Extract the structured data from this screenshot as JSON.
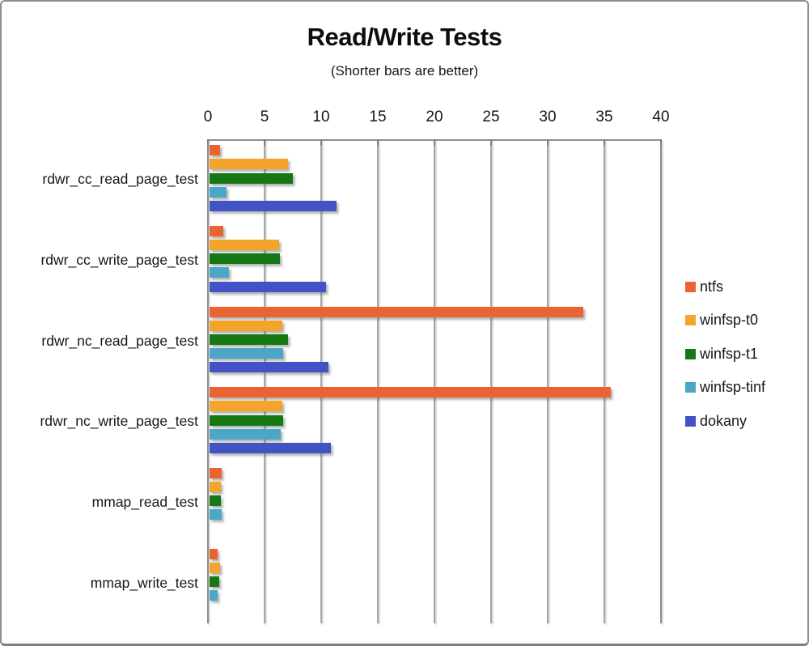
{
  "chart_data": {
    "type": "bar",
    "orientation": "horizontal",
    "title": "Read/Write Tests",
    "subtitle": "(Shorter bars are better)",
    "xlabel": "",
    "ylabel": "",
    "xlim": [
      0,
      40
    ],
    "xticks": [
      0,
      5,
      10,
      15,
      20,
      25,
      30,
      35,
      40
    ],
    "grid": true,
    "legend_position": "right",
    "categories": [
      "rdwr_cc_read_page_test",
      "rdwr_cc_write_page_test",
      "rdwr_nc_read_page_test",
      "rdwr_nc_write_page_test",
      "mmap_read_test",
      "mmap_write_test"
    ],
    "series": [
      {
        "name": "ntfs",
        "color": "#ea6432",
        "values": [
          0.95,
          1.2,
          33.0,
          35.4,
          1.05,
          0.7
        ]
      },
      {
        "name": "winfsp-t0",
        "color": "#f5a42b",
        "values": [
          6.9,
          6.15,
          6.4,
          6.4,
          1.0,
          0.9
        ]
      },
      {
        "name": "winfsp-t1",
        "color": "#157815",
        "values": [
          7.35,
          6.2,
          6.95,
          6.5,
          1.0,
          0.85
        ]
      },
      {
        "name": "winfsp-tinf",
        "color": "#4aa7c6",
        "values": [
          1.5,
          1.7,
          6.5,
          6.3,
          1.05,
          0.7
        ]
      },
      {
        "name": "dokany",
        "color": "#4254c5",
        "values": [
          11.2,
          10.3,
          10.5,
          10.7,
          0,
          0
        ]
      }
    ]
  }
}
